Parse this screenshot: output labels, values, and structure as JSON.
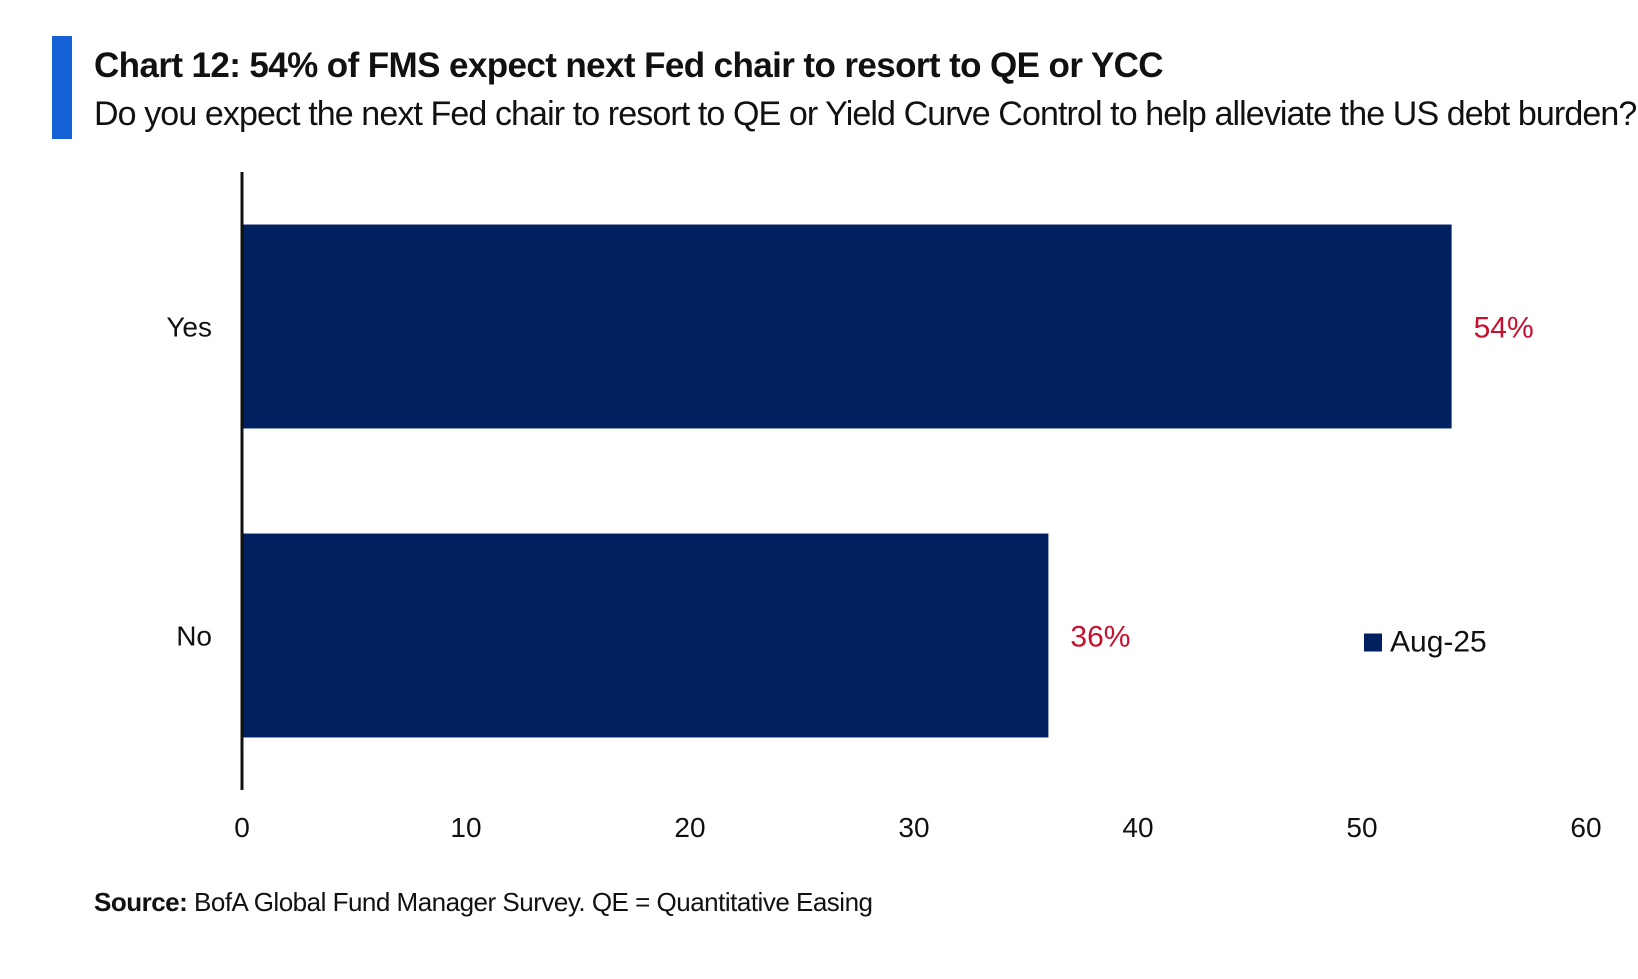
{
  "header": {
    "title": "Chart 12: 54% of FMS expect next Fed chair to resort to QE or YCC",
    "subtitle": "Do you expect the next Fed chair to resort to QE or Yield Curve Control to help alleviate the US debt burden?"
  },
  "footer": {
    "source_label": "Source:",
    "source_text": " BofA Global Fund Manager Survey. QE = Quantitative Easing"
  },
  "colors": {
    "accent": "#1461d6",
    "bar": "#002060",
    "data_label": "#c8102e"
  },
  "chart_data": {
    "type": "bar",
    "orientation": "horizontal",
    "categories": [
      "Yes",
      "No"
    ],
    "series": [
      {
        "name": "Aug-25",
        "values": [
          54,
          36
        ],
        "data_labels": [
          "54%",
          "36%"
        ]
      }
    ],
    "xlim": [
      0,
      60
    ],
    "x_ticks": [
      0,
      10,
      20,
      30,
      40,
      50,
      60
    ],
    "xlabel": "",
    "ylabel": "",
    "grid": false,
    "legend_position": "right"
  }
}
